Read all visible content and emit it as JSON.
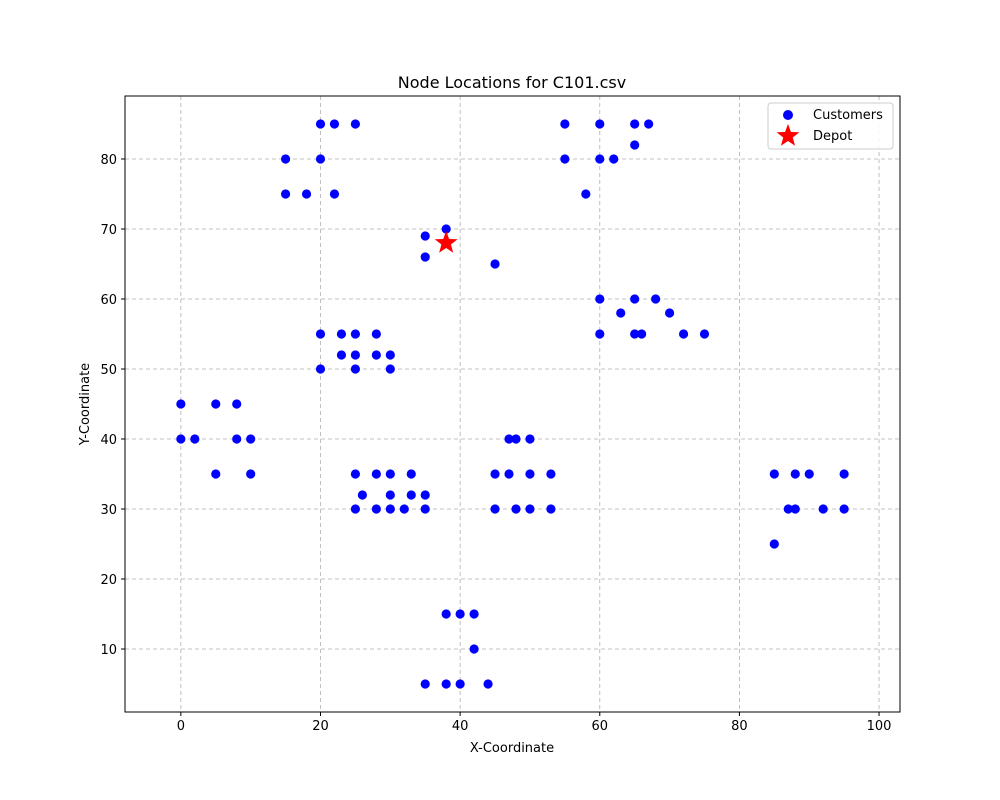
{
  "chart_data": {
    "type": "scatter",
    "title": "Node Locations for C101.csv",
    "xlabel": "X-Coordinate",
    "ylabel": "Y-Coordinate",
    "xlim": [
      -8,
      103
    ],
    "ylim": [
      1,
      89
    ],
    "xticks": [
      0,
      20,
      40,
      60,
      80,
      100
    ],
    "yticks": [
      10,
      20,
      30,
      40,
      50,
      60,
      70,
      80
    ],
    "grid": true,
    "legend_position": "top-right",
    "series": [
      {
        "name": "Customers",
        "marker": "circle",
        "color": "#0000ff",
        "points": [
          [
            20,
            85
          ],
          [
            22,
            85
          ],
          [
            25,
            85
          ],
          [
            15,
            80
          ],
          [
            20,
            80
          ],
          [
            15,
            75
          ],
          [
            18,
            75
          ],
          [
            22,
            75
          ],
          [
            55,
            85
          ],
          [
            60,
            85
          ],
          [
            65,
            85
          ],
          [
            67,
            85
          ],
          [
            65,
            82
          ],
          [
            55,
            80
          ],
          [
            60,
            80
          ],
          [
            62,
            80
          ],
          [
            58,
            75
          ],
          [
            35,
            69
          ],
          [
            38,
            70
          ],
          [
            35,
            66
          ],
          [
            45,
            65
          ],
          [
            60,
            60
          ],
          [
            65,
            60
          ],
          [
            68,
            60
          ],
          [
            63,
            58
          ],
          [
            70,
            58
          ],
          [
            60,
            55
          ],
          [
            65,
            55
          ],
          [
            66,
            55
          ],
          [
            72,
            55
          ],
          [
            75,
            55
          ],
          [
            20,
            55
          ],
          [
            23,
            55
          ],
          [
            25,
            55
          ],
          [
            28,
            55
          ],
          [
            23,
            52
          ],
          [
            25,
            52
          ],
          [
            28,
            52
          ],
          [
            30,
            52
          ],
          [
            20,
            50
          ],
          [
            25,
            50
          ],
          [
            30,
            50
          ],
          [
            0,
            45
          ],
          [
            5,
            45
          ],
          [
            8,
            45
          ],
          [
            0,
            40
          ],
          [
            2,
            40
          ],
          [
            8,
            40
          ],
          [
            10,
            40
          ],
          [
            5,
            35
          ],
          [
            10,
            35
          ],
          [
            25,
            35
          ],
          [
            28,
            35
          ],
          [
            30,
            35
          ],
          [
            33,
            35
          ],
          [
            26,
            32
          ],
          [
            30,
            32
          ],
          [
            33,
            32
          ],
          [
            35,
            32
          ],
          [
            25,
            30
          ],
          [
            28,
            30
          ],
          [
            30,
            30
          ],
          [
            32,
            30
          ],
          [
            35,
            30
          ],
          [
            47,
            40
          ],
          [
            48,
            40
          ],
          [
            50,
            40
          ],
          [
            45,
            35
          ],
          [
            47,
            35
          ],
          [
            50,
            35
          ],
          [
            53,
            35
          ],
          [
            45,
            30
          ],
          [
            48,
            30
          ],
          [
            50,
            30
          ],
          [
            53,
            30
          ],
          [
            85,
            35
          ],
          [
            88,
            35
          ],
          [
            90,
            35
          ],
          [
            95,
            35
          ],
          [
            87,
            30
          ],
          [
            88,
            30
          ],
          [
            92,
            30
          ],
          [
            95,
            30
          ],
          [
            85,
            25
          ],
          [
            38,
            15
          ],
          [
            40,
            15
          ],
          [
            42,
            15
          ],
          [
            42,
            10
          ],
          [
            35,
            5
          ],
          [
            38,
            5
          ],
          [
            40,
            5
          ],
          [
            44,
            5
          ]
        ]
      },
      {
        "name": "Depot",
        "marker": "star",
        "color": "#ff0000",
        "points": [
          [
            38,
            68
          ]
        ]
      }
    ]
  }
}
